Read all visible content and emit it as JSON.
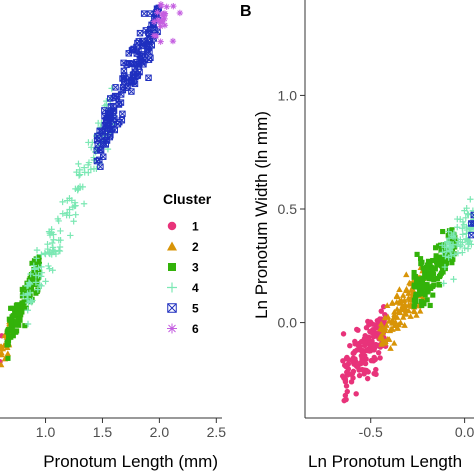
{
  "chart_data": [
    {
      "panel": "",
      "type": "scatter",
      "xlabel": "Pronotum Length (mm)",
      "ylabel": "",
      "x_ticks": [
        "1.0",
        "1.5",
        "2.0",
        "2.5"
      ],
      "xlim": [
        0.6,
        2.55
      ],
      "ylim": [
        0.6,
        2.2
      ],
      "legend": {
        "title": "Cluster",
        "placement": "right",
        "entries": [
          {
            "label": "1",
            "color": "#e8337a",
            "shape": "circle"
          },
          {
            "label": "2",
            "color": "#d89407",
            "shape": "triangle"
          },
          {
            "label": "3",
            "color": "#33b20a",
            "shape": "square"
          },
          {
            "label": "4",
            "color": "#7ce8b4",
            "shape": "plus"
          },
          {
            "label": "5",
            "color": "#1f2fbf",
            "shape": "boxed-x"
          },
          {
            "label": "6",
            "color": "#c45ee0",
            "shape": "asterisk"
          }
        ]
      },
      "clusters": [
        {
          "name": "1",
          "x_range": [
            0.55,
            0.62
          ],
          "slope": 0.92,
          "intercept": 0.3,
          "spread": 0.03,
          "n": 6
        },
        {
          "name": "2",
          "x_range": [
            0.58,
            0.72
          ],
          "slope": 0.92,
          "intercept": 0.3,
          "spread": 0.03,
          "n": 30
        },
        {
          "name": "3",
          "x_range": [
            0.66,
            0.95
          ],
          "slope": 0.92,
          "intercept": 0.3,
          "spread": 0.035,
          "n": 140
        },
        {
          "name": "4",
          "x_range": [
            0.8,
            1.6
          ],
          "slope": 0.92,
          "intercept": 0.3,
          "spread": 0.05,
          "n": 150
        },
        {
          "name": "5",
          "x_range": [
            1.45,
            2.0
          ],
          "slope": 0.92,
          "intercept": 0.3,
          "spread": 0.05,
          "n": 160
        },
        {
          "name": "6",
          "x_range": [
            1.95,
            2.45
          ],
          "slope": 0.92,
          "intercept": 0.3,
          "spread": 0.055,
          "n": 90
        }
      ]
    },
    {
      "panel": "B",
      "type": "scatter",
      "xlabel": "Ln Pronotum Length",
      "ylabel": "Ln Pronotum Width (ln mm)",
      "x_ticks": [
        "-0.5",
        "0.0"
      ],
      "y_ticks": [
        "0.0",
        "0.5",
        "1.0"
      ],
      "xlim": [
        -0.85,
        0.05
      ],
      "ylim": [
        -0.42,
        1.42
      ],
      "clusters": [
        {
          "name": "1",
          "x_range": [
            -0.65,
            -0.42
          ],
          "slope": 1.0,
          "intercept": 0.4,
          "spread": 0.06,
          "n": 150
        },
        {
          "name": "2",
          "x_range": [
            -0.45,
            -0.22
          ],
          "slope": 1.0,
          "intercept": 0.4,
          "spread": 0.045,
          "n": 130
        },
        {
          "name": "3",
          "x_range": [
            -0.27,
            -0.05
          ],
          "slope": 1.0,
          "intercept": 0.4,
          "spread": 0.045,
          "n": 160
        },
        {
          "name": "4",
          "x_range": [
            -0.12,
            0.05
          ],
          "slope": 1.0,
          "intercept": 0.4,
          "spread": 0.05,
          "n": 80
        },
        {
          "name": "5",
          "x_range": [
            0.03,
            0.05
          ],
          "slope": 1.0,
          "intercept": 0.4,
          "spread": 0.02,
          "n": 4
        }
      ]
    }
  ]
}
